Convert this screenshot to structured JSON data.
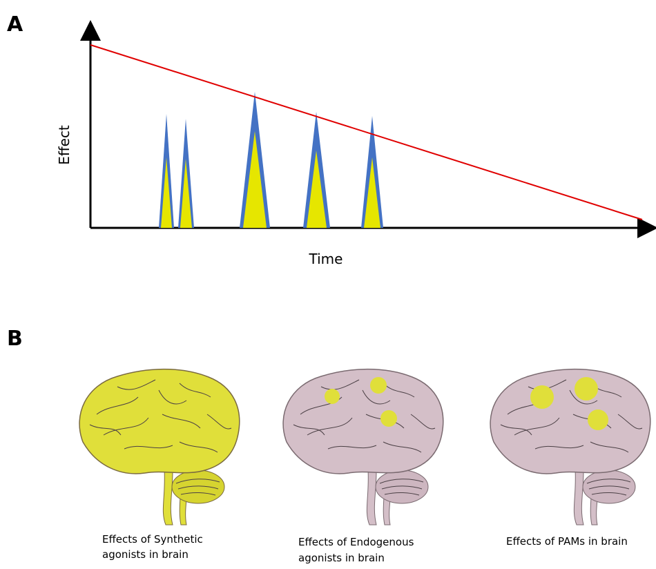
{
  "panels": [
    {
      "label": "A",
      "y_axis_label": "Effect",
      "x_axis_label": "Time"
    },
    {
      "label": "B",
      "captions": [
        {
          "lines": [
            "Effects of Synthetic",
            "agonists in brain"
          ]
        },
        {
          "lines": [
            "Effects of Endogenous",
            "agonists in brain"
          ]
        },
        {
          "lines": [
            "Effects of PAMs in brain"
          ]
        }
      ]
    }
  ]
}
